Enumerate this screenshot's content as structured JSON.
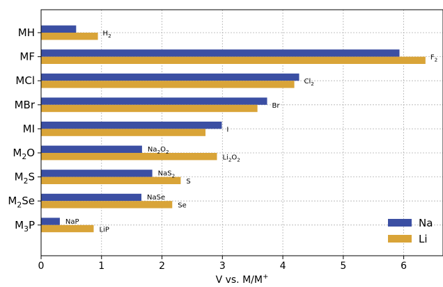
{
  "chart_data": {
    "type": "bar",
    "orientation": "horizontal",
    "categories": [
      {
        "base": "MH",
        "sub": ""
      },
      {
        "base": "MF",
        "sub": ""
      },
      {
        "base": "MCl",
        "sub": ""
      },
      {
        "base": "MBr",
        "sub": ""
      },
      {
        "base": "MI",
        "sub": ""
      },
      {
        "base": "M",
        "sub": "2",
        "tail": "O"
      },
      {
        "base": "M",
        "sub": "2",
        "tail": "S"
      },
      {
        "base": "M",
        "sub": "2",
        "tail": "Se"
      },
      {
        "base": "M",
        "sub": "3",
        "tail": "P"
      }
    ],
    "series": [
      {
        "name": "Na",
        "color": "#3b4fa3",
        "values": [
          0.58,
          5.93,
          4.27,
          3.74,
          2.99,
          1.67,
          1.84,
          1.66,
          0.31
        ],
        "labels": [
          null,
          null,
          null,
          null,
          null,
          [
            {
              "t": "Na"
            },
            {
              "t": "2",
              "sub": true
            },
            {
              "t": "O"
            },
            {
              "t": "2",
              "sub": true
            }
          ],
          [
            {
              "t": "NaS"
            },
            {
              "t": "2",
              "sub": true
            }
          ],
          [
            {
              "t": "NaSe"
            }
          ],
          [
            {
              "t": "NaP"
            }
          ]
        ]
      },
      {
        "name": "Li",
        "color": "#d9a438",
        "values": [
          0.94,
          6.36,
          4.19,
          3.58,
          2.72,
          2.91,
          2.31,
          2.17,
          0.87
        ],
        "labels": [
          null,
          null,
          null,
          null,
          null,
          [
            {
              "t": "Li"
            },
            {
              "t": "2",
              "sub": true
            },
            {
              "t": "O"
            },
            {
              "t": "2",
              "sub": true
            }
          ],
          [
            {
              "t": "S"
            }
          ],
          [
            {
              "t": "Se"
            }
          ],
          [
            {
              "t": "LiP"
            }
          ]
        ]
      }
    ],
    "shared_labels": [
      [
        {
          "t": "H"
        },
        {
          "t": "2",
          "sub": true
        }
      ],
      [
        {
          "t": "F"
        },
        {
          "t": "2",
          "sub": true
        }
      ],
      [
        {
          "t": "Cl"
        },
        {
          "t": "2",
          "sub": true
        }
      ],
      [
        {
          "t": "Br"
        }
      ],
      [
        {
          "t": "I"
        }
      ],
      null,
      null,
      null,
      null
    ],
    "xlabel": {
      "text": "V vs. M/M",
      "sup": "+"
    },
    "ylabel": "",
    "xlim": [
      0,
      6.65
    ],
    "xticks": [
      0,
      1,
      2,
      3,
      4,
      5,
      6
    ],
    "grid": true,
    "legend_position": "bottom-right"
  }
}
